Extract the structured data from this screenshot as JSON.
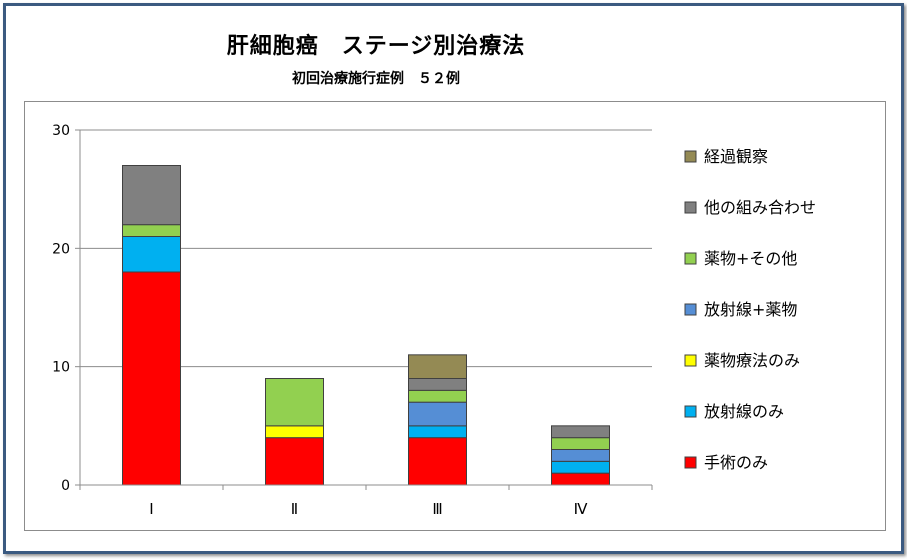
{
  "chart_data": {
    "type": "bar",
    "stacked": true,
    "title": "肝細胞癌　ステージ別治療法",
    "subtitle": "初回治療施行症例　５２例",
    "categories": [
      "Ⅰ",
      "Ⅱ",
      "Ⅲ",
      "Ⅳ"
    ],
    "ylim": [
      0,
      30
    ],
    "yticks": [
      0,
      10,
      20,
      30
    ],
    "grid": true,
    "legend_position": "right",
    "series": [
      {
        "name": "手術のみ",
        "color": "#ff0000",
        "values": [
          18,
          4,
          4,
          1
        ]
      },
      {
        "name": "放射線のみ",
        "color": "#00b0f0",
        "values": [
          3,
          0,
          1,
          1
        ]
      },
      {
        "name": "薬物療法のみ",
        "color": "#ffff00",
        "values": [
          0,
          1,
          0,
          0
        ]
      },
      {
        "name": "放射線+薬物",
        "color": "#558ed5",
        "values": [
          0,
          0,
          2,
          1
        ]
      },
      {
        "name": "薬物+その他",
        "color": "#92d050",
        "values": [
          1,
          4,
          1,
          1
        ]
      },
      {
        "name": "他の組み合わせ",
        "color": "#808080",
        "values": [
          5,
          0,
          1,
          1
        ]
      },
      {
        "name": "経過観察",
        "color": "#948a54",
        "values": [
          0,
          0,
          2,
          0
        ]
      }
    ]
  }
}
